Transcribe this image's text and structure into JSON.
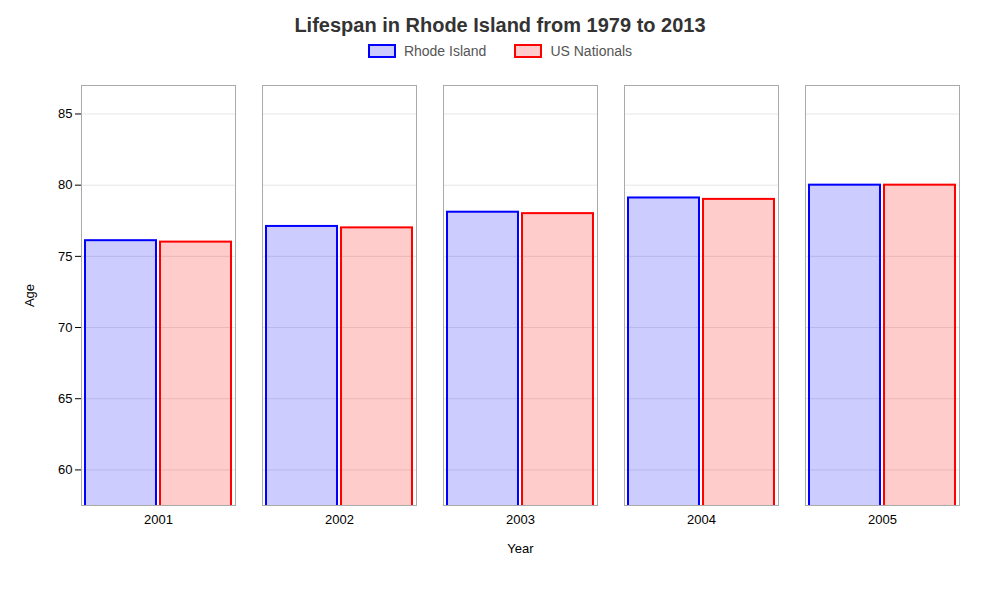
{
  "chart_data": {
    "type": "bar",
    "title": "Lifespan in Rhode Island from 1979 to 2013",
    "xlabel": "Year",
    "ylabel": "Age",
    "categories": [
      "2001",
      "2002",
      "2003",
      "2004",
      "2005"
    ],
    "series": [
      {
        "name": "Rhode Island",
        "color": "#0000ff",
        "values": [
          76.1,
          77.1,
          78.1,
          79.1,
          80.0
        ]
      },
      {
        "name": "US Nationals",
        "color": "#ff0000",
        "values": [
          76.0,
          77.0,
          78.0,
          79.0,
          80.0
        ]
      }
    ],
    "ylim": [
      57.5,
      87
    ],
    "yticks": [
      60,
      65,
      70,
      75,
      80,
      85
    ],
    "grid": true,
    "legend": "top"
  }
}
